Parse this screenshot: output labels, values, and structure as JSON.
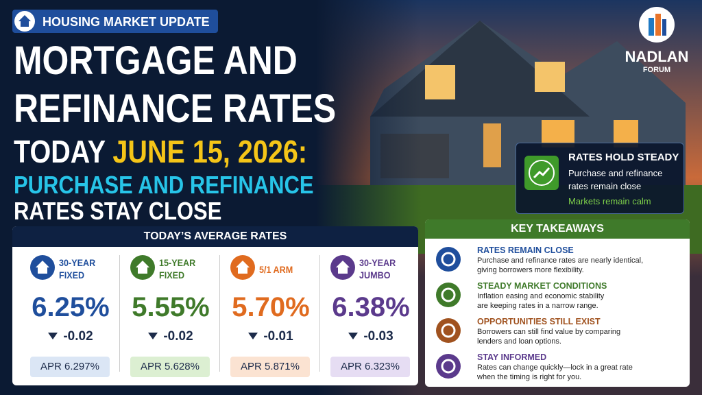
{
  "header": {
    "badge": "HOUSING MARKET UPDATE",
    "title_line1": "MORTGAGE AND",
    "title_line2": "REFINANCE RATES",
    "title_line3": "TODAY",
    "date": "JUNE 15, 2026:",
    "subtitle_line1": "PURCHASE AND REFINANCE",
    "subtitle_line2": "RATES STAY CLOSE"
  },
  "logo": {
    "name": "NADLAN",
    "sub": "FORUM"
  },
  "callout": {
    "title": "RATES HOLD STEADY",
    "text_line1": "Purchase and refinance",
    "text_line2": "rates remain close",
    "note": "Markets remain calm"
  },
  "rates": {
    "title": "TODAY’S AVERAGE RATES",
    "items": [
      {
        "label_line1": "30-YEAR",
        "label_line2": "FIXED",
        "rate": "6.25%",
        "change": "-0.02",
        "apr": "APR 6.297%"
      },
      {
        "label_line1": "15-YEAR",
        "label_line2": "FIXED",
        "rate": "5.55%",
        "change": "-0.02",
        "apr": "APR 5.628%"
      },
      {
        "label_line1": "5/1 ARM",
        "label_line2": null,
        "rate": "5.70%",
        "change": "-0.01",
        "apr": "APR 5.871%"
      },
      {
        "label_line1": "30-YEAR",
        "label_line2": "JUMBO",
        "rate": "6.38%",
        "change": "-0.03",
        "apr": "APR 6.323%"
      }
    ]
  },
  "takeaways": {
    "title": "KEY TAKEAWAYS",
    "items": [
      {
        "heading": "RATES REMAIN CLOSE",
        "text_line1": "Purchase and refinance rates are nearly identical,",
        "text_line2": "giving borrowers more flexibility."
      },
      {
        "heading": "STEADY MARKET CONDITIONS",
        "text_line1": "Inflation easing and economic stability",
        "text_line2": "are keeping rates in a narrow range."
      },
      {
        "heading": "OPPORTUNITIES STILL EXIST",
        "text_line1": "Borrowers can still find value by comparing",
        "text_line2": "lenders and loan options."
      },
      {
        "heading": "STAY INFORMED",
        "text_line1": "Rates can change quickly—lock in a great rate",
        "text_line2": "when the timing is right for you."
      }
    ]
  }
}
